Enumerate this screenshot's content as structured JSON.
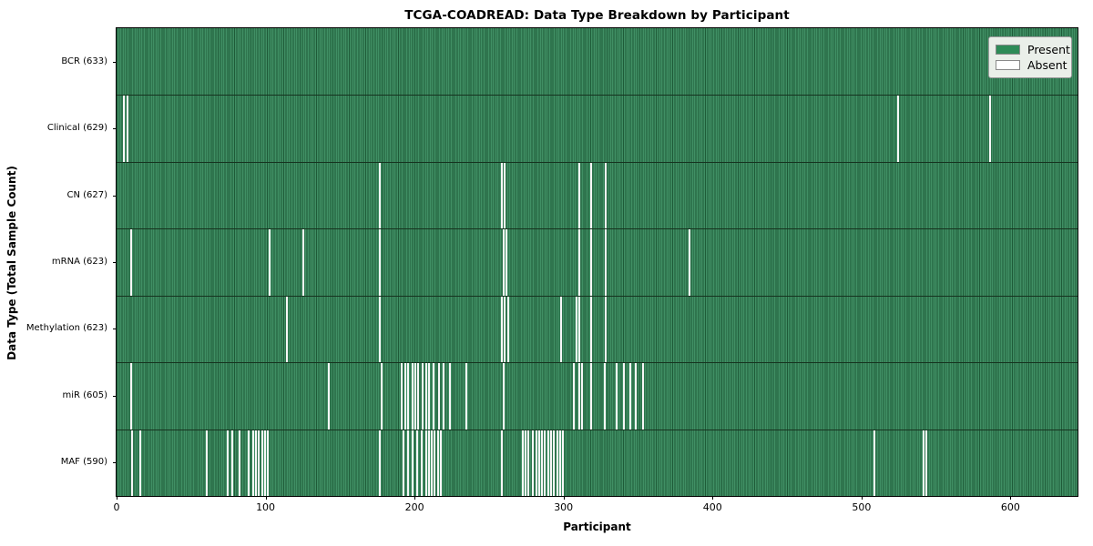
{
  "chart_data": {
    "type": "heatmap",
    "title": "TCGA-COADREAD: Data Type Breakdown by Participant",
    "xlabel": "Participant",
    "ylabel": "Data Type (Total Sample Count)",
    "x_ticks": [
      0,
      100,
      200,
      300,
      400,
      500,
      600
    ],
    "n_participants": 633,
    "grid": false,
    "colors": {
      "present_fill": "#408f64",
      "present_edge": "#1e5b38",
      "absent": "#ffffff",
      "legend_green": "#2e8b57"
    },
    "legend": {
      "position": "upper right",
      "items": [
        {
          "label": "Present",
          "color": "#2e8b57"
        },
        {
          "label": "Absent",
          "color": "#ffffff"
        }
      ]
    },
    "rows": [
      {
        "label": "BCR (633)",
        "data_type": "BCR",
        "total": 633,
        "absent": []
      },
      {
        "label": "Clinical (629)",
        "data_type": "Clinical",
        "total": 629,
        "absent": [
          4,
          7,
          524,
          586
        ]
      },
      {
        "label": "CN (627)",
        "data_type": "CN",
        "total": 627,
        "absent": [
          176,
          258,
          260,
          310,
          318,
          328
        ]
      },
      {
        "label": "mRNA (623)",
        "data_type": "mRNA",
        "total": 623,
        "absent": [
          9,
          102,
          125,
          176,
          259,
          261,
          310,
          318,
          328,
          384
        ]
      },
      {
        "label": "Methylation (623)",
        "data_type": "Methylation",
        "total": 623,
        "absent": [
          114,
          176,
          258,
          260,
          262,
          298,
          308,
          310,
          318,
          328
        ]
      },
      {
        "label": "miR (605)",
        "data_type": "miR",
        "total": 605,
        "absent": [
          9,
          142,
          177,
          191,
          193,
          195,
          198,
          200,
          202,
          205,
          207,
          209,
          212,
          216,
          219,
          223,
          234,
          259,
          306,
          310,
          312,
          318,
          327,
          335,
          340,
          344,
          348,
          353
        ]
      },
      {
        "label": "MAF (590)",
        "data_type": "MAF",
        "total": 590,
        "absent": [
          10,
          15,
          60,
          74,
          77,
          82,
          88,
          91,
          93,
          95,
          97,
          99,
          101,
          176,
          192,
          195,
          198,
          201,
          204,
          207,
          209,
          211,
          213,
          215,
          217,
          258,
          272,
          274,
          276,
          279,
          281,
          283,
          285,
          287,
          289,
          291,
          293,
          295,
          297,
          299,
          508,
          541,
          543
        ]
      }
    ]
  }
}
